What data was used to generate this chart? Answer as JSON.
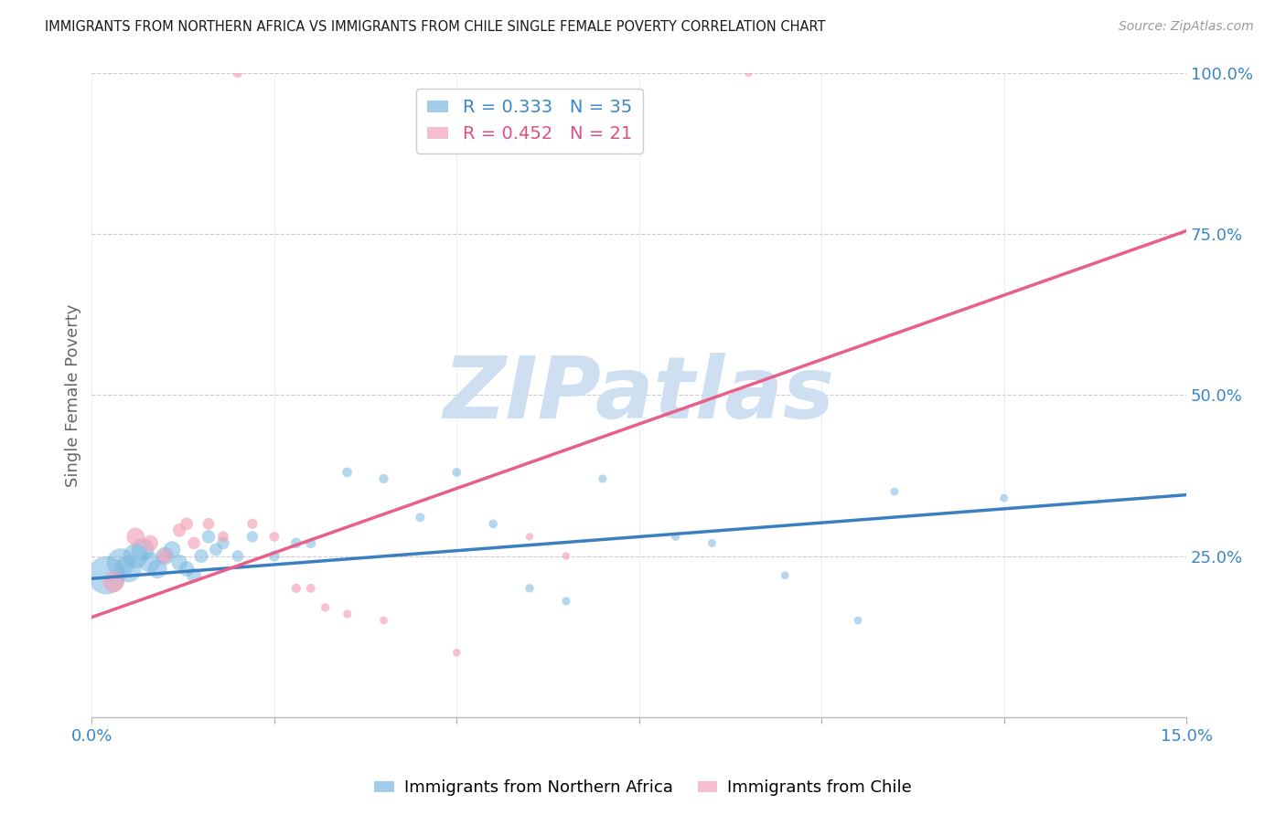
{
  "title": "IMMIGRANTS FROM NORTHERN AFRICA VS IMMIGRANTS FROM CHILE SINGLE FEMALE POVERTY CORRELATION CHART",
  "source": "Source: ZipAtlas.com",
  "ylabel": "Single Female Poverty",
  "xlim": [
    0.0,
    0.15
  ],
  "ylim": [
    0.0,
    1.0
  ],
  "xticks": [
    0.0,
    0.025,
    0.05,
    0.075,
    0.1,
    0.125,
    0.15
  ],
  "xtick_labels": [
    "0.0%",
    "",
    "",
    "",
    "",
    "",
    "15.0%"
  ],
  "yticks": [
    0.0,
    0.25,
    0.5,
    0.75,
    1.0
  ],
  "ytick_labels": [
    "",
    "25.0%",
    "50.0%",
    "75.0%",
    "100.0%"
  ],
  "blue_color": "#7ab8e0",
  "pink_color": "#f4a0b8",
  "blue_line_color": "#3a7fc1",
  "pink_line_color": "#e8608a",
  "blue_R": 0.333,
  "blue_N": 35,
  "pink_R": 0.452,
  "pink_N": 21,
  "watermark": "ZIPatlas",
  "watermark_color": "#cddff0",
  "legend_label_blue": "Immigrants from Northern Africa",
  "legend_label_pink": "Immigrants from Chile",
  "blue_x": [
    0.002,
    0.004,
    0.005,
    0.006,
    0.007,
    0.008,
    0.009,
    0.01,
    0.011,
    0.012,
    0.013,
    0.014,
    0.015,
    0.016,
    0.017,
    0.018,
    0.02,
    0.022,
    0.025,
    0.028,
    0.03,
    0.035,
    0.04,
    0.045,
    0.05,
    0.055,
    0.06,
    0.065,
    0.07,
    0.08,
    0.085,
    0.095,
    0.105,
    0.11,
    0.125
  ],
  "blue_y": [
    0.22,
    0.24,
    0.23,
    0.25,
    0.26,
    0.24,
    0.23,
    0.25,
    0.26,
    0.24,
    0.23,
    0.22,
    0.25,
    0.28,
    0.26,
    0.27,
    0.25,
    0.28,
    0.25,
    0.27,
    0.27,
    0.38,
    0.37,
    0.31,
    0.38,
    0.3,
    0.2,
    0.18,
    0.37,
    0.28,
    0.27,
    0.22,
    0.15,
    0.35,
    0.34
  ],
  "blue_sizes": [
    900,
    500,
    450,
    380,
    320,
    270,
    230,
    200,
    180,
    160,
    145,
    130,
    120,
    110,
    100,
    95,
    85,
    80,
    75,
    70,
    65,
    60,
    55,
    52,
    50,
    48,
    46,
    44,
    44,
    42,
    42,
    40,
    40,
    40,
    40
  ],
  "pink_x": [
    0.003,
    0.006,
    0.008,
    0.01,
    0.012,
    0.013,
    0.014,
    0.016,
    0.018,
    0.02,
    0.022,
    0.025,
    0.028,
    0.03,
    0.032,
    0.035,
    0.04,
    0.05,
    0.06,
    0.065,
    0.09
  ],
  "pink_y": [
    0.21,
    0.28,
    0.27,
    0.25,
    0.29,
    0.3,
    0.27,
    0.3,
    0.28,
    1.0,
    0.3,
    0.28,
    0.2,
    0.2,
    0.17,
    0.16,
    0.15,
    0.1,
    0.28,
    0.25,
    1.0
  ],
  "pink_sizes": [
    280,
    200,
    160,
    130,
    110,
    100,
    95,
    85,
    75,
    55,
    65,
    60,
    55,
    50,
    45,
    42,
    40,
    38,
    36,
    36,
    36
  ],
  "blue_line_x0": 0.0,
  "blue_line_y0": 0.215,
  "blue_line_x1": 0.15,
  "blue_line_y1": 0.345,
  "pink_line_x0": 0.0,
  "pink_line_y0": 0.155,
  "pink_line_x1": 0.15,
  "pink_line_y1": 0.755
}
